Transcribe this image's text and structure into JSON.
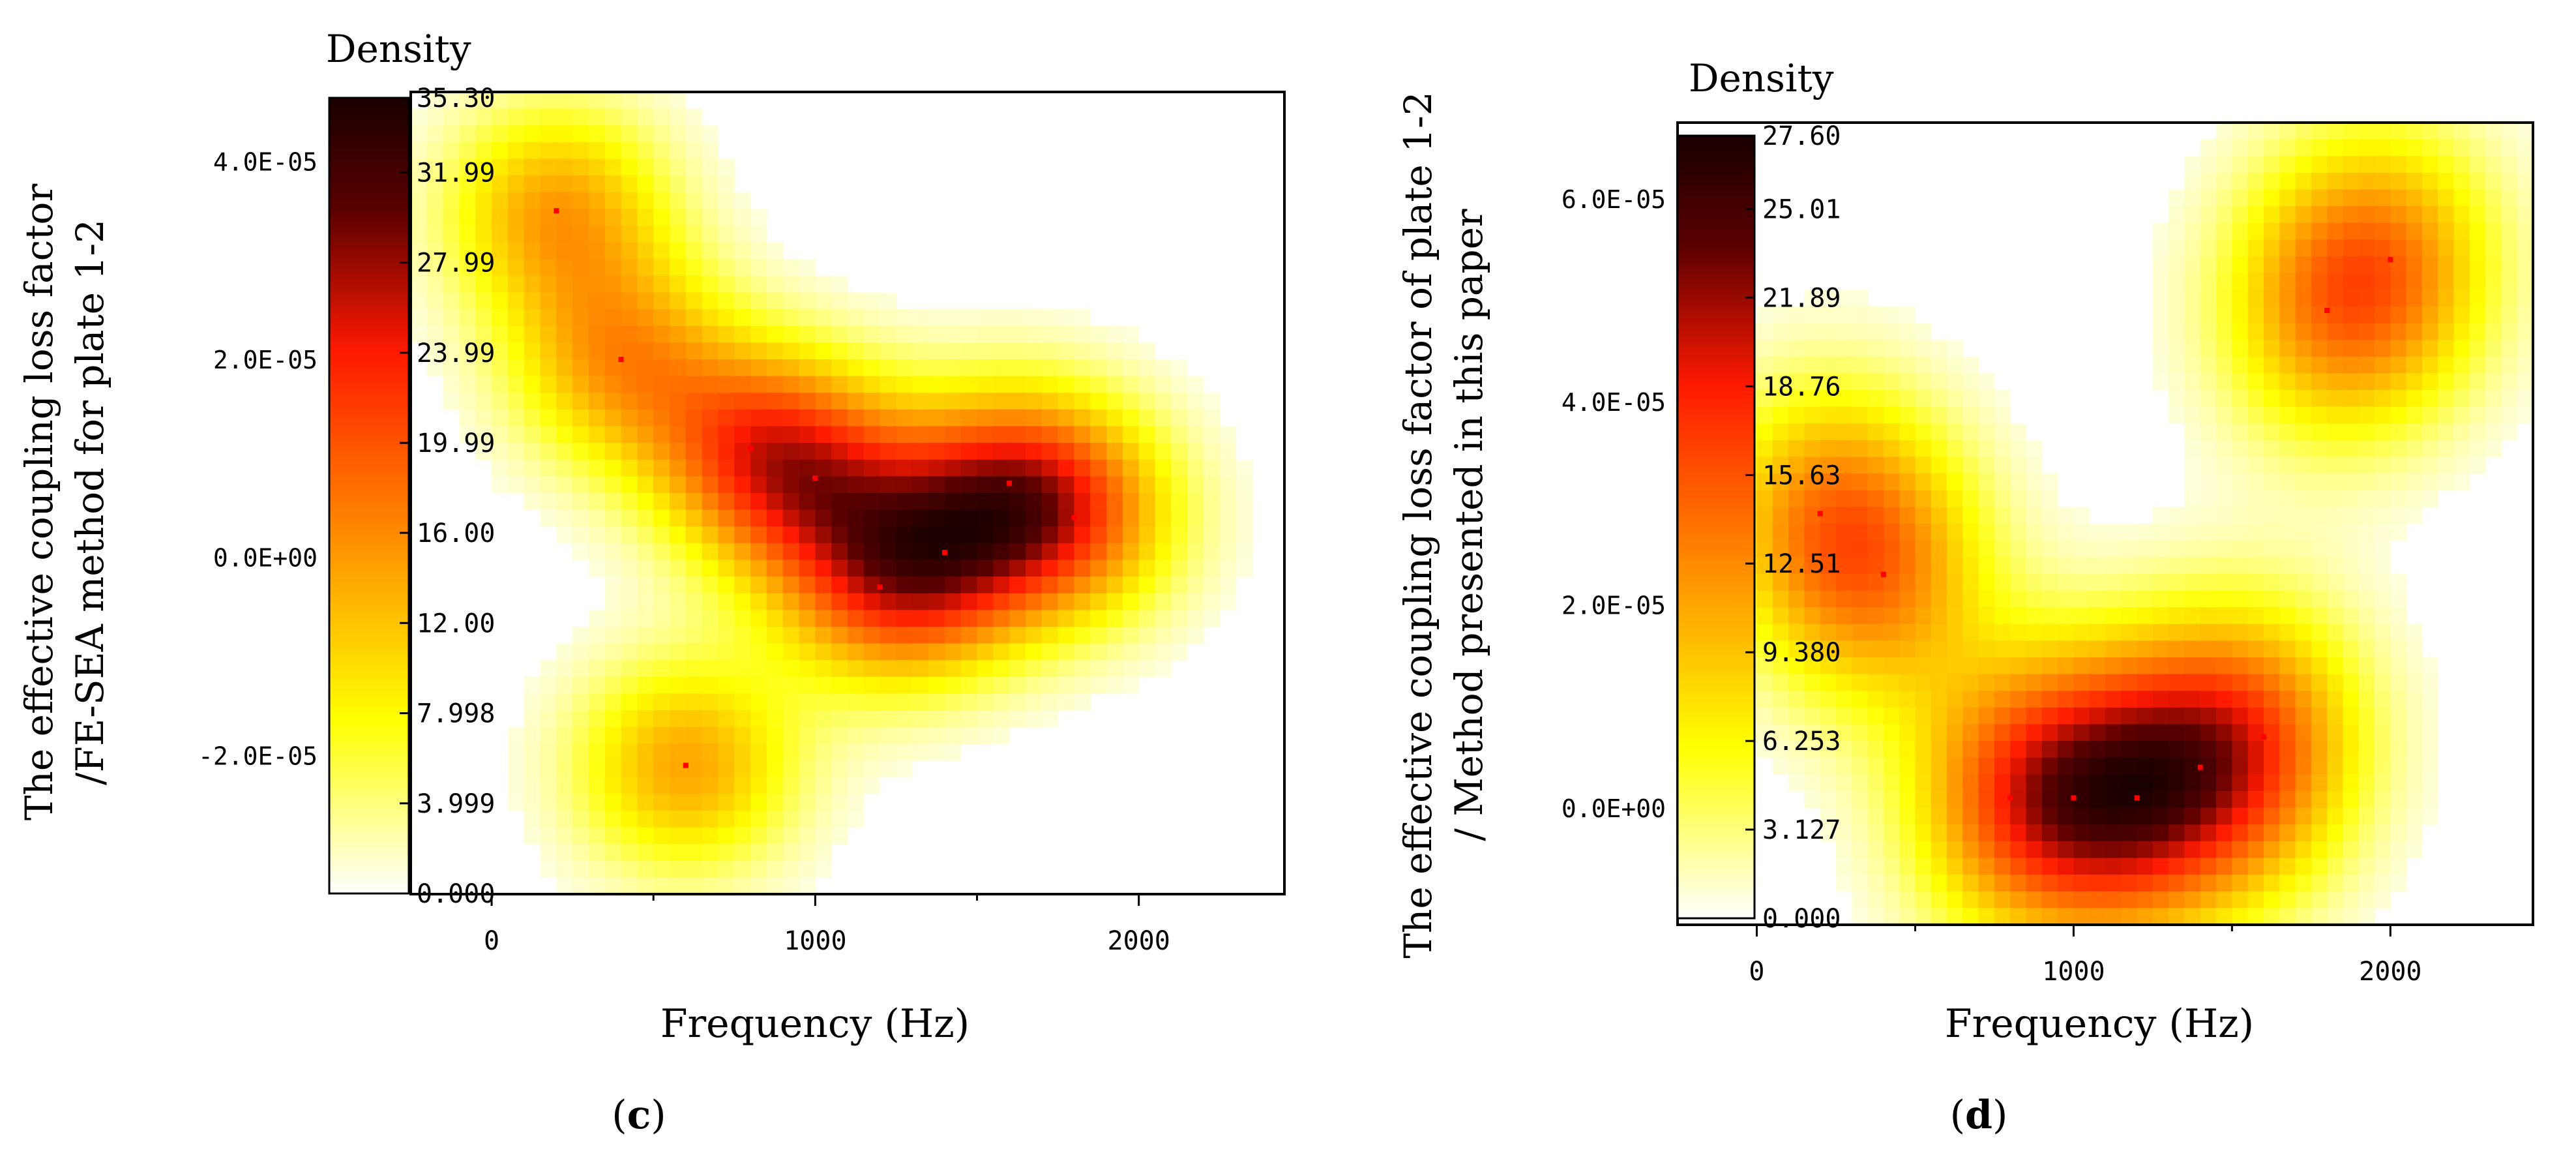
{
  "panels": [
    {
      "panel_label_open": "(",
      "panel_letter": "c",
      "panel_label_close": ")",
      "colorbar_title": "Density",
      "ylabel_line1": "The effective coupling loss factor",
      "ylabel_line2": "/FE-SEA method for plate 1-2"
    },
    {
      "panel_label_open": "(",
      "panel_letter": "d",
      "panel_label_close": ")",
      "colorbar_title": "Density",
      "ylabel_line1": "The effective coupling loss factor of plate 1-2",
      "ylabel_line2": "/ Method presented in this paper"
    }
  ],
  "colors": {
    "density_low": "#ffffff",
    "density_mid_low": "#ffff00",
    "density_mid": "#ff8c00",
    "density_mid_high": "#ff1a00",
    "density_high": "#5a0000",
    "density_max": "#1a0000",
    "point_marker": "#ff0000",
    "axis": "#000000"
  },
  "chart_data": [
    {
      "type": "heatmap",
      "title": "",
      "xlabel": "Frequency (Hz)",
      "ylabel": "The effective coupling loss factor /FE-SEA method for plate 1-2",
      "xlim": [
        -250,
        2450
      ],
      "ylim": [
        -3.4e-05,
        4.7e-05
      ],
      "xticks": [
        0,
        1000,
        2000
      ],
      "xtick_labels": [
        "0",
        "1000",
        "2000"
      ],
      "yticks": [
        -2e-05,
        0,
        2e-05,
        4e-05
      ],
      "ytick_labels": [
        "-2.0E-05",
        "0.0E+00",
        "2.0E-05",
        "4.0E-05"
      ],
      "colorbar": {
        "title": "Density",
        "min": 0.0,
        "max": 35.3,
        "tick_values": [
          0.0,
          3.999,
          7.998,
          12.0,
          16.0,
          19.99,
          23.99,
          27.99,
          31.99,
          35.3
        ],
        "tick_labels": [
          "0.000",
          "3.999",
          "7.998",
          "12.00",
          "16.00",
          "19.99",
          "23.99",
          "27.99",
          "31.99",
          "35.30"
        ]
      },
      "points": [
        {
          "x": 200,
          "y": 3.5e-05
        },
        {
          "x": 400,
          "y": 2e-05
        },
        {
          "x": 600,
          "y": -2.1e-05
        },
        {
          "x": 800,
          "y": 1.1e-05
        },
        {
          "x": 1000,
          "y": 8e-06
        },
        {
          "x": 1200,
          "y": -3e-06
        },
        {
          "x": 1400,
          "y": 5e-07
        },
        {
          "x": 1600,
          "y": 7.5e-06
        },
        {
          "x": 1800,
          "y": 4e-06
        }
      ],
      "bandwidth_x": 240,
      "bandwidth_y": 7.5e-06
    },
    {
      "type": "heatmap",
      "title": "",
      "xlabel": "Frequency (Hz)",
      "ylabel": "The effective coupling loss factor of plate 1-2 / Method presented in this paper",
      "xlim": [
        -250,
        2450
      ],
      "ylim": [
        -1.15e-05,
        6.75e-05
      ],
      "xticks": [
        0,
        1000,
        2000
      ],
      "xtick_labels": [
        "0",
        "1000",
        "2000"
      ],
      "yticks": [
        0,
        2e-05,
        4e-05,
        6e-05
      ],
      "ytick_labels": [
        "0.0E+00",
        "2.0E-05",
        "4.0E-05",
        "6.0E-05"
      ],
      "colorbar": {
        "title": "Density",
        "min": 0.0,
        "max": 27.6,
        "tick_values": [
          0.0,
          3.127,
          6.253,
          9.38,
          12.51,
          15.63,
          18.76,
          21.89,
          25.01,
          27.6
        ],
        "tick_labels": [
          "0.000",
          "3.127",
          "6.253",
          "9.380",
          "12.51",
          "15.63",
          "18.76",
          "21.89",
          "25.01",
          "27.60"
        ]
      },
      "points": [
        {
          "x": 200,
          "y": 2.9e-05
        },
        {
          "x": 400,
          "y": 2.3e-05
        },
        {
          "x": 800,
          "y": 1e-06
        },
        {
          "x": 1000,
          "y": 1e-06
        },
        {
          "x": 1200,
          "y": 1e-06
        },
        {
          "x": 1400,
          "y": 4e-06
        },
        {
          "x": 1600,
          "y": 7e-06
        },
        {
          "x": 1800,
          "y": 4.9e-05
        },
        {
          "x": 2000,
          "y": 5.4e-05
        }
      ],
      "bandwidth_x": 250,
      "bandwidth_y": 9.5e-06
    }
  ]
}
